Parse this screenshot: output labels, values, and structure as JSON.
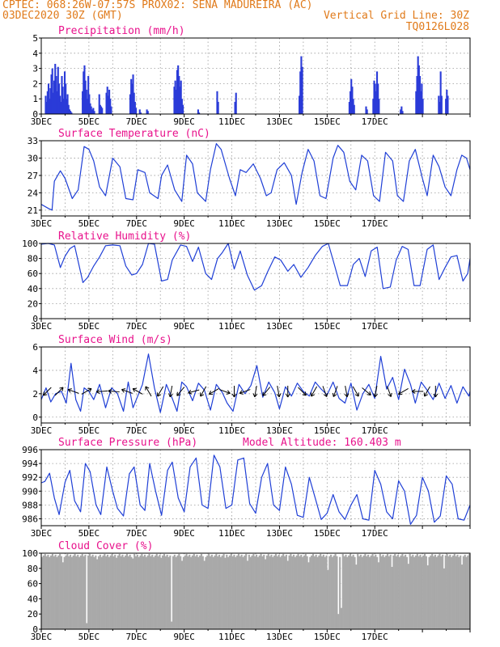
{
  "header": {
    "line1_left": "CPTEC:   068:26W-07:57S   PROX02: SENA MADUREIRA (AC)",
    "line2_left": "03DEC2020 30Z (GMT)",
    "line2_right": "Vertical Grid Line: 30Z",
    "line3_right": "TQ0126L028"
  },
  "colors": {
    "header": "#e07a1a",
    "title": "#e8128c",
    "line": "#1f3fd6",
    "bar": "#2a3bd8",
    "cloud": "#a9a9a9",
    "wind_arrow": "#000000"
  },
  "chart_data": [
    {
      "id": "precip",
      "type": "bar",
      "title": "Precipitation (mm/h)",
      "ylim": [
        0,
        5
      ],
      "yticks": [
        0,
        1,
        2,
        3,
        4,
        5
      ],
      "x_tick_labels": [
        "3DEC",
        "5DEC",
        "7DEC",
        "9DEC",
        "11DEC",
        "13DEC",
        "15DEC",
        "17DEC"
      ],
      "events": [
        {
          "day": 0.15,
          "values": [
            1.2,
            0.8,
            1.5,
            2.0,
            1.0,
            1.7,
            2.6,
            3.0,
            1.4,
            2.2,
            3.3,
            2.5,
            1.5,
            3.1,
            2.0,
            1.2,
            0.8,
            2.5,
            1.8,
            1.0,
            2.8,
            2.0,
            1.0,
            1.3,
            0.6,
            0.3,
            0.2,
            0.1
          ]
        },
        {
          "day": 1.15,
          "values": [
            0.3,
            0.2,
            0.1
          ]
        },
        {
          "day": 1.7,
          "values": [
            1.5,
            2.8,
            3.2,
            2.2,
            1.6,
            1.0,
            2.5,
            1.3,
            0.7,
            0.5,
            0.3,
            0.2
          ]
        },
        {
          "day": 2.15,
          "values": [
            0.4,
            0.2
          ]
        },
        {
          "day": 2.4,
          "values": [
            1.3,
            0.6,
            0.5,
            0.4
          ]
        },
        {
          "day": 2.7,
          "values": [
            1.4,
            1.8,
            1.2,
            1.6,
            1.0,
            0.5
          ]
        },
        {
          "day": 3.7,
          "values": [
            1.3,
            2.3,
            2.0,
            2.6,
            1.4,
            0.8,
            0.4
          ]
        },
        {
          "day": 4.1,
          "values": [
            0.3,
            0.1
          ]
        },
        {
          "day": 4.4,
          "values": [
            0.3,
            0.2
          ]
        },
        {
          "day": 5.55,
          "values": [
            1.8,
            2.2,
            1.6,
            2.9,
            3.2,
            2.5,
            1.8,
            2.2,
            1.0,
            0.6
          ]
        },
        {
          "day": 6.55,
          "values": [
            0.3,
            0.1
          ]
        },
        {
          "day": 7.35,
          "values": [
            1.5,
            0.8
          ]
        },
        {
          "day": 8.1,
          "values": [
            0.8,
            1.4
          ]
        },
        {
          "day": 10.8,
          "values": [
            1.2,
            2.8,
            3.8,
            3.1
          ]
        },
        {
          "day": 12.9,
          "values": [
            0.8,
            1.5,
            2.3,
            1.8,
            1.0,
            0.6
          ]
        },
        {
          "day": 13.6,
          "values": [
            0.5,
            0.3
          ]
        },
        {
          "day": 13.9,
          "values": [
            1.0,
            2.2,
            2.0,
            1.5,
            2.8,
            2.0,
            1.0
          ]
        },
        {
          "day": 15.05,
          "values": [
            0.3,
            0.5,
            0.2
          ]
        },
        {
          "day": 15.7,
          "values": [
            1.5,
            2.5,
            3.8,
            3.2,
            2.5,
            1.5,
            2.0,
            1.0
          ]
        },
        {
          "day": 16.65,
          "values": [
            1.2,
            0.8,
            2.8,
            1.2
          ]
        },
        {
          "day": 16.95,
          "values": [
            1.0,
            1.6,
            1.2
          ]
        }
      ]
    },
    {
      "id": "temp",
      "type": "line",
      "title": "Surface Temperature (nC)",
      "ylim": [
        20,
        33
      ],
      "yticks": [
        21,
        24,
        27,
        30,
        33
      ],
      "x_tick_labels": [
        "3DEC",
        "5DEC",
        "7DEC",
        "9DEC",
        "11DEC",
        "13DEC",
        "15DEC",
        "17DEC"
      ],
      "x_days": [
        0,
        0.3,
        0.45,
        0.55,
        0.8,
        1.0,
        1.3,
        1.55,
        1.8,
        2.0,
        2.2,
        2.45,
        2.7,
        3.0,
        3.3,
        3.55,
        3.85,
        4.05,
        4.35,
        4.55,
        4.9,
        5.05,
        5.3,
        5.6,
        5.9,
        6.1,
        6.35,
        6.55,
        6.9,
        7.1,
        7.35,
        7.55,
        7.9,
        8.15,
        8.35,
        8.6,
        8.9,
        9.2,
        9.45,
        9.65,
        9.9,
        10.2,
        10.5,
        10.7,
        10.95,
        11.2,
        11.45,
        11.7,
        11.95,
        12.25,
        12.45,
        12.7,
        12.95,
        13.2,
        13.45,
        13.7,
        13.95,
        14.2,
        14.45,
        14.75,
        14.95,
        15.2,
        15.45,
        15.7,
        16.0,
        16.2,
        16.45,
        16.7,
        16.95,
        17.2,
        17.45,
        17.65,
        17.85,
        18.0
      ],
      "y": [
        22.0,
        21.3,
        21.0,
        26.0,
        27.8,
        26.5,
        23.0,
        24.5,
        32.0,
        31.5,
        29.5,
        25.0,
        23.5,
        30.0,
        28.5,
        23.0,
        22.8,
        28.0,
        27.5,
        24.0,
        23.0,
        27.0,
        28.8,
        24.5,
        22.5,
        30.5,
        29.0,
        24.0,
        22.5,
        28.0,
        32.5,
        31.5,
        26.5,
        23.5,
        28.0,
        27.5,
        29.0,
        26.5,
        23.5,
        24.0,
        28.0,
        29.2,
        27.0,
        22.0,
        27.5,
        31.5,
        29.5,
        23.5,
        23.0,
        30.0,
        32.2,
        31.0,
        26.0,
        24.5,
        30.5,
        29.5,
        23.5,
        22.5,
        31.0,
        29.5,
        23.5,
        22.5,
        29.5,
        31.5,
        26.5,
        23.5,
        30.5,
        28.5,
        25.0,
        23.5,
        28.0,
        30.5,
        30.0,
        28.0
      ]
    },
    {
      "id": "rh",
      "type": "line",
      "title": "Relative Humidity (%)",
      "ylim": [
        0,
        100
      ],
      "yticks": [
        0,
        20,
        40,
        60,
        80,
        100
      ],
      "x_tick_labels": [
        "3DEC",
        "5DEC",
        "7DEC",
        "9DEC",
        "11DEC",
        "13DEC",
        "15DEC",
        "17DEC"
      ],
      "x_days": [
        0,
        0.3,
        0.55,
        0.8,
        1.0,
        1.2,
        1.4,
        1.75,
        1.95,
        2.2,
        2.45,
        2.7,
        3.0,
        3.3,
        3.55,
        3.8,
        4.0,
        4.25,
        4.5,
        4.75,
        5.05,
        5.3,
        5.5,
        5.85,
        6.1,
        6.35,
        6.6,
        6.9,
        7.15,
        7.4,
        7.6,
        7.85,
        8.1,
        8.35,
        8.65,
        8.95,
        9.25,
        9.5,
        9.8,
        10.05,
        10.35,
        10.6,
        10.9,
        11.2,
        11.5,
        11.8,
        12.05,
        12.3,
        12.55,
        12.85,
        13.1,
        13.35,
        13.6,
        13.85,
        14.1,
        14.35,
        14.65,
        14.9,
        15.15,
        15.4,
        15.65,
        15.9,
        16.2,
        16.45,
        16.7,
        16.95,
        17.2,
        17.45,
        17.7,
        17.9,
        18.0
      ],
      "y": [
        99,
        100,
        98,
        68,
        83,
        93,
        97,
        48,
        55,
        70,
        82,
        97,
        98,
        97,
        70,
        58,
        60,
        72,
        100,
        99,
        50,
        52,
        78,
        98,
        96,
        76,
        95,
        60,
        52,
        80,
        88,
        100,
        66,
        90,
        58,
        38,
        44,
        62,
        82,
        78,
        63,
        72,
        55,
        68,
        84,
        96,
        100,
        72,
        44,
        44,
        72,
        80,
        56,
        90,
        95,
        40,
        42,
        78,
        96,
        92,
        44,
        44,
        92,
        98,
        52,
        68,
        82,
        84,
        50,
        60,
        80
      ]
    },
    {
      "id": "wind",
      "type": "line",
      "title": "Surface Wind (m/s)",
      "ylim": [
        -0.5,
        6
      ],
      "yticks": [
        0,
        2,
        4,
        6
      ],
      "x_tick_labels": [
        "3DEC",
        "5DEC",
        "7DEC",
        "9DEC",
        "11DEC",
        "13DEC",
        "15DEC",
        "17DEC"
      ],
      "x_days": [
        0,
        0.2,
        0.4,
        0.6,
        0.85,
        1.05,
        1.25,
        1.45,
        1.65,
        1.8,
        2.0,
        2.2,
        2.45,
        2.7,
        2.95,
        3.2,
        3.45,
        3.65,
        3.85,
        4.05,
        4.25,
        4.5,
        4.75,
        5.0,
        5.25,
        5.5,
        5.7,
        5.9,
        6.1,
        6.35,
        6.6,
        6.85,
        7.1,
        7.35,
        7.6,
        7.8,
        8.05,
        8.3,
        8.55,
        8.8,
        9.05,
        9.3,
        9.55,
        9.8,
        10.0,
        10.25,
        10.5,
        10.75,
        11.0,
        11.25,
        11.5,
        11.75,
        12.0,
        12.25,
        12.5,
        12.75,
        13.0,
        13.25,
        13.5,
        13.75,
        14.0,
        14.25,
        14.5,
        14.75,
        15.0,
        15.25,
        15.5,
        15.7,
        15.95,
        16.2,
        16.45,
        16.7,
        16.95,
        17.2,
        17.45,
        17.7,
        17.95,
        18.0
      ],
      "y": [
        1.5,
        2.5,
        1.3,
        2.0,
        2.2,
        1.2,
        4.6,
        1.5,
        0.5,
        2.5,
        2.2,
        1.5,
        2.8,
        0.8,
        2.5,
        2.0,
        0.5,
        3.0,
        0.8,
        1.8,
        2.8,
        5.4,
        2.5,
        0.4,
        2.8,
        1.6,
        0.5,
        3.0,
        2.6,
        1.4,
        2.9,
        2.3,
        0.6,
        2.8,
        2.1,
        1.2,
        0.5,
        2.8,
        2.0,
        2.7,
        4.4,
        1.7,
        3.0,
        2.1,
        0.7,
        2.6,
        1.8,
        2.9,
        2.2,
        1.8,
        3.0,
        2.4,
        1.9,
        3.0,
        1.6,
        1.2,
        2.9,
        0.6,
        2.0,
        2.8,
        1.6,
        5.2,
        2.4,
        3.4,
        1.5,
        4.1,
        2.8,
        1.2,
        3.0,
        2.3,
        1.5,
        2.9,
        1.6,
        2.7,
        1.2,
        2.6,
        1.8,
        2.2
      ]
    },
    {
      "id": "pressure",
      "type": "line",
      "title": "Surface Pressure (hPa)",
      "subtitle_right": "Model Altitude: 160.403 m",
      "ylim": [
        985,
        996
      ],
      "yticks": [
        986,
        988,
        990,
        992,
        994,
        996
      ],
      "x_tick_labels": [
        "3DEC",
        "5DEC",
        "7DEC",
        "9DEC",
        "11DEC",
        "13DEC",
        "15DEC",
        "17DEC"
      ],
      "x_days": [
        0,
        0.15,
        0.35,
        0.55,
        0.75,
        1.0,
        1.2,
        1.4,
        1.65,
        1.85,
        2.05,
        2.3,
        2.5,
        2.75,
        3.0,
        3.2,
        3.45,
        3.7,
        3.9,
        4.15,
        4.35,
        4.55,
        4.8,
        5.05,
        5.3,
        5.5,
        5.75,
        6.0,
        6.25,
        6.5,
        6.75,
        7.0,
        7.25,
        7.5,
        7.75,
        8.0,
        8.25,
        8.5,
        8.75,
        9.0,
        9.25,
        9.5,
        9.75,
        10.0,
        10.25,
        10.5,
        10.75,
        11.0,
        11.25,
        11.5,
        11.75,
        12.0,
        12.25,
        12.5,
        12.75,
        13.0,
        13.25,
        13.5,
        13.75,
        14.0,
        14.25,
        14.5,
        14.75,
        15.0,
        15.25,
        15.5,
        15.75,
        16.0,
        16.25,
        16.5,
        16.75,
        17.0,
        17.25,
        17.5,
        17.75,
        18.0
      ],
      "y": [
        991.2,
        991.4,
        992.6,
        989.0,
        986.6,
        991.3,
        993.0,
        988.6,
        987.0,
        994.0,
        992.8,
        988.0,
        986.6,
        993.5,
        990.0,
        987.5,
        986.4,
        992.5,
        993.5,
        988.0,
        987.2,
        994.0,
        990.0,
        986.5,
        993.0,
        994.2,
        989.0,
        987.0,
        993.5,
        994.8,
        988.0,
        987.5,
        995.2,
        993.5,
        987.5,
        988.0,
        994.5,
        994.8,
        988.2,
        986.8,
        992.0,
        994.0,
        988.0,
        987.2,
        993.5,
        991.0,
        986.5,
        986.2,
        992.0,
        989.0,
        985.9,
        986.8,
        989.5,
        987.0,
        985.9,
        988.0,
        989.5,
        986.0,
        985.8,
        993.0,
        991.0,
        987.0,
        986.0,
        991.5,
        990.0,
        985.2,
        986.5,
        992.0,
        990.0,
        985.5,
        986.4,
        992.2,
        991.0,
        986.0,
        985.8,
        988.0
      ]
    },
    {
      "id": "cloud",
      "type": "bar",
      "title": "Cloud Cover (%)",
      "ylim": [
        0,
        100
      ],
      "yticks": [
        0,
        20,
        40,
        60,
        80,
        100
      ],
      "x_tick_labels": [
        "3DEC",
        "5DEC",
        "7DEC",
        "9DEC",
        "11DEC",
        "13DEC",
        "15DEC",
        "17DEC"
      ],
      "base_level": 97,
      "dips": [
        {
          "day": 0.9,
          "value": 88
        },
        {
          "day": 1.85,
          "value": 8
        },
        {
          "day": 2.3,
          "value": 92
        },
        {
          "day": 3.1,
          "value": 94
        },
        {
          "day": 3.8,
          "value": 93
        },
        {
          "day": 5.0,
          "value": 94
        },
        {
          "day": 5.45,
          "value": 10
        },
        {
          "day": 5.9,
          "value": 90
        },
        {
          "day": 6.8,
          "value": 90
        },
        {
          "day": 7.7,
          "value": 94
        },
        {
          "day": 8.6,
          "value": 90
        },
        {
          "day": 9.4,
          "value": 92
        },
        {
          "day": 10.3,
          "value": 90
        },
        {
          "day": 11.2,
          "value": 88
        },
        {
          "day": 12.0,
          "value": 78
        },
        {
          "day": 12.45,
          "value": 20
        },
        {
          "day": 12.55,
          "value": 28
        },
        {
          "day": 13.2,
          "value": 85
        },
        {
          "day": 14.1,
          "value": 88
        },
        {
          "day": 14.7,
          "value": 82
        },
        {
          "day": 15.4,
          "value": 86
        },
        {
          "day": 16.2,
          "value": 84
        },
        {
          "day": 16.9,
          "value": 80
        },
        {
          "day": 17.6,
          "value": 85
        }
      ]
    }
  ],
  "wind_arrows": [
    {
      "day": 0.25,
      "angle": 135
    },
    {
      "day": 0.75,
      "angle": -45
    },
    {
      "day": 1.35,
      "angle": 200
    },
    {
      "day": 1.9,
      "angle": -30
    },
    {
      "day": 2.55,
      "angle": 175
    },
    {
      "day": 3.05,
      "angle": 185
    },
    {
      "day": 3.6,
      "angle": 200
    },
    {
      "day": 4.05,
      "angle": 210
    },
    {
      "day": 4.5,
      "angle": 240
    },
    {
      "day": 5.0,
      "angle": 120
    },
    {
      "day": 5.45,
      "angle": 100
    },
    {
      "day": 5.85,
      "angle": 130
    },
    {
      "day": 6.4,
      "angle": 165
    },
    {
      "day": 6.8,
      "angle": 120
    },
    {
      "day": 7.25,
      "angle": 150
    },
    {
      "day": 7.7,
      "angle": 20
    },
    {
      "day": 8.1,
      "angle": 90
    },
    {
      "day": 8.55,
      "angle": 160
    },
    {
      "day": 9.0,
      "angle": 100
    },
    {
      "day": 9.45,
      "angle": 130
    },
    {
      "day": 9.95,
      "angle": 80
    },
    {
      "day": 10.35,
      "angle": 90
    },
    {
      "day": 10.95,
      "angle": 45
    },
    {
      "day": 11.45,
      "angle": 120
    },
    {
      "day": 11.9,
      "angle": 70
    },
    {
      "day": 12.35,
      "angle": 110
    },
    {
      "day": 12.8,
      "angle": 80
    },
    {
      "day": 13.2,
      "angle": 60
    },
    {
      "day": 13.65,
      "angle": 40
    },
    {
      "day": 14.05,
      "angle": 100
    },
    {
      "day": 14.6,
      "angle": 70
    },
    {
      "day": 15.2,
      "angle": 150
    },
    {
      "day": 15.8,
      "angle": 180
    },
    {
      "day": 16.2,
      "angle": 120
    },
    {
      "day": 16.55,
      "angle": 90
    }
  ]
}
